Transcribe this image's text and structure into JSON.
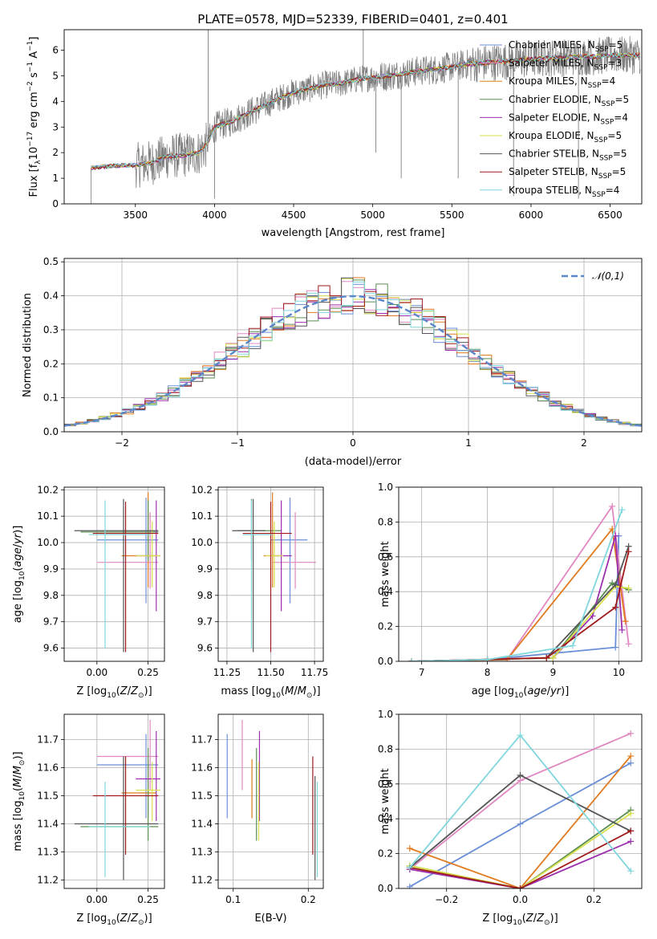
{
  "title": "PLATE=0578, MJD=52339, FIBERID=0401, z=0.401",
  "colors": {
    "series": [
      "#6a8fd8",
      "#e187c1",
      "#e07a1f",
      "#5b8f52",
      "#9b2fae",
      "#d8e04a",
      "#555555",
      "#a01a1a",
      "#7fd6dc"
    ],
    "data": "#7f7f7f",
    "grid": "#b0b0b0",
    "gauss": "#5b86c9"
  },
  "chart_data": [
    {
      "id": "spectrum",
      "type": "line",
      "xlabel": "wavelength [Angstrom, rest frame]",
      "ylabel": "Flux [f_λ 10^-17 erg cm^-2 s^-1 A^-1]",
      "xlim": [
        3050,
        6700
      ],
      "ylim": [
        0,
        6.8
      ],
      "xticks": [
        3500,
        4000,
        4500,
        5000,
        5500,
        6000,
        6500
      ],
      "yticks": [
        0,
        1,
        2,
        3,
        4,
        5,
        6
      ],
      "grid": false,
      "legend_position": "top-right",
      "series_names": [
        "Chabrier MILES, N_SSP=5",
        "Salpeter MILES, N_SSP=3",
        "Kroupa MILES, N_SSP=4",
        "Chabrier ELODIE, N_SSP=5",
        "Salpeter ELODIE, N_SSP=4",
        "Kroupa ELODIE, N_SSP=5",
        "Chabrier STELIB, N_SSP=5",
        "Salpeter STELIB, N_SSP=5",
        "Kroupa STELIB, N_SSP=4"
      ],
      "continuum": {
        "x": [
          3220,
          3300,
          3400,
          3500,
          3600,
          3700,
          3800,
          3900,
          3950,
          4000,
          4100,
          4200,
          4300,
          4400,
          4500,
          4600,
          4700,
          4800,
          4900,
          5000,
          5100,
          5200,
          5300,
          5400,
          5500,
          5600,
          5700,
          5800,
          5900,
          6000,
          6100,
          6200,
          6300,
          6400,
          6500
        ],
        "y": [
          1.4,
          1.45,
          1.5,
          1.5,
          1.6,
          1.85,
          1.9,
          2.0,
          2.3,
          3.0,
          3.2,
          3.5,
          3.8,
          4.1,
          4.35,
          4.5,
          4.65,
          4.7,
          4.85,
          4.95,
          5.0,
          5.1,
          5.2,
          5.25,
          5.35,
          5.45,
          5.5,
          5.55,
          5.6,
          5.65,
          5.7,
          5.7,
          5.75,
          5.75,
          5.8
        ]
      }
    },
    {
      "id": "residuals",
      "type": "step",
      "xlabel": "(data-model)/error",
      "ylabel": "Normed distribution",
      "xlim": [
        -2.5,
        2.5
      ],
      "ylim": [
        0,
        0.51
      ],
      "xticks": [
        -2,
        -1,
        0,
        1,
        2
      ],
      "yticks": [
        0.0,
        0.1,
        0.2,
        0.3,
        0.4,
        0.5
      ],
      "grid": true,
      "legend_position": "top-right",
      "legend": "𝒩(0,1)"
    },
    {
      "id": "age-vs-Z",
      "type": "scatter",
      "xlabel": "Z [log10(Z/Z⊙)]",
      "ylabel": "age  [log10(age/yr)]",
      "xlim": [
        -0.16,
        0.33
      ],
      "ylim": [
        9.55,
        10.21
      ],
      "xticks": [
        0.0,
        0.25
      ],
      "yticks": [
        9.6,
        9.7,
        9.8,
        9.9,
        10.0,
        10.1,
        10.2
      ],
      "points": [
        {
          "x": 0.24,
          "y": 10.01,
          "xerr": [
            0.24,
            0.06
          ],
          "yerr": [
            0.24,
            0.16
          ]
        },
        {
          "x": 0.26,
          "y": 9.925,
          "xerr": [
            0.26,
            0.04
          ],
          "yerr": [
            0.1,
            0.19
          ]
        },
        {
          "x": 0.25,
          "y": 9.95,
          "xerr": [
            0.13,
            0.04
          ],
          "yerr": [
            0.12,
            0.24
          ]
        },
        {
          "x": 0.25,
          "y": 10.04,
          "xerr": [
            0.33,
            0.05
          ],
          "yerr": [
            0.11,
            0.12
          ]
        },
        {
          "x": 0.29,
          "y": 9.95,
          "xerr": [
            0.1,
            0.02
          ],
          "yerr": [
            0.21,
            0.21
          ]
        },
        {
          "x": 0.27,
          "y": 9.95,
          "xerr": [
            0.08,
            0.04
          ],
          "yerr": [
            0.12,
            0.13
          ]
        },
        {
          "x": 0.13,
          "y": 10.045,
          "xerr": [
            0.24,
            0.17
          ],
          "yerr": [
            0.46,
            0.12
          ]
        },
        {
          "x": 0.14,
          "y": 10.035,
          "xerr": [
            0.16,
            0.16
          ],
          "yerr": [
            0.45,
            0.12
          ]
        },
        {
          "x": 0.04,
          "y": 10.03,
          "xerr": [
            0.08,
            0.22
          ],
          "yerr": [
            0.43,
            0.13
          ]
        }
      ]
    },
    {
      "id": "age-vs-mass",
      "type": "scatter",
      "xlabel": "mass [log10(M/M⊙)]",
      "ylabel": "",
      "xlim": [
        11.2,
        11.8
      ],
      "ylim": [
        9.55,
        10.21
      ],
      "xticks": [
        11.25,
        11.5,
        11.75
      ],
      "yticks": [
        9.6,
        9.7,
        9.8,
        9.9,
        10.0,
        10.1,
        10.2
      ],
      "points": [
        {
          "x": 11.61,
          "y": 10.01,
          "xerr": [
            0.11,
            0.1
          ],
          "yerr": [
            0.24,
            0.16
          ]
        },
        {
          "x": 11.64,
          "y": 9.925,
          "xerr": [
            0.13,
            0.12
          ],
          "yerr": [
            0.1,
            0.19
          ]
        },
        {
          "x": 11.51,
          "y": 9.95,
          "xerr": [
            0.05,
            0.05
          ],
          "yerr": [
            0.12,
            0.24
          ]
        },
        {
          "x": 11.39,
          "y": 10.045,
          "xerr": [
            0.08,
            0.17
          ],
          "yerr": [
            0.11,
            0.12
          ]
        },
        {
          "x": 11.56,
          "y": 9.95,
          "xerr": [
            0.05,
            0.06
          ],
          "yerr": [
            0.21,
            0.21
          ]
        },
        {
          "x": 11.52,
          "y": 9.95,
          "xerr": [
            0.05,
            0.05
          ],
          "yerr": [
            0.12,
            0.13
          ]
        },
        {
          "x": 11.4,
          "y": 10.045,
          "xerr": [
            0.12,
            0.07
          ],
          "yerr": [
            0.46,
            0.12
          ]
        },
        {
          "x": 11.5,
          "y": 10.035,
          "xerr": [
            0.16,
            0.12
          ],
          "yerr": [
            0.45,
            0.12
          ]
        },
        {
          "x": 11.39,
          "y": 10.03,
          "xerr": [
            0.05,
            0.12
          ],
          "yerr": [
            0.43,
            0.13
          ]
        }
      ]
    },
    {
      "id": "weight-vs-age",
      "type": "line",
      "xlabel": "age  [log10(age/yr)]",
      "ylabel": "mass weight",
      "xlim": [
        6.65,
        10.35
      ],
      "ylim": [
        0,
        1.0
      ],
      "xticks": [
        7,
        8,
        9,
        10
      ],
      "yticks": [
        0.0,
        0.2,
        0.4,
        0.6,
        0.8,
        1.0
      ],
      "grid": true,
      "series": [
        {
          "x": [
            6.85,
            8.0,
            9.95,
            10.0
          ],
          "y": [
            0.0,
            0.01,
            0.08,
            0.72
          ]
        },
        {
          "x": [
            6.85,
            8.3,
            9.9,
            10.15
          ],
          "y": [
            0.0,
            0.01,
            0.89,
            0.1
          ]
        },
        {
          "x": [
            6.85,
            8.3,
            9.9,
            10.1
          ],
          "y": [
            0.0,
            0.01,
            0.76,
            0.23
          ]
        },
        {
          "x": [
            6.85,
            9.0,
            9.9,
            10.15
          ],
          "y": [
            0.0,
            0.02,
            0.45,
            0.41
          ]
        },
        {
          "x": [
            6.85,
            9.0,
            9.6,
            9.95,
            10.05
          ],
          "y": [
            0.0,
            0.02,
            0.26,
            0.72,
            0.18
          ]
        },
        {
          "x": [
            6.85,
            9.0,
            9.95,
            10.15
          ],
          "y": [
            0.0,
            0.02,
            0.43,
            0.42
          ]
        },
        {
          "x": [
            6.85,
            8.0,
            8.9,
            9.95,
            10.15
          ],
          "y": [
            0.0,
            0.01,
            0.02,
            0.44,
            0.66
          ]
        },
        {
          "x": [
            6.85,
            8.9,
            9.95,
            10.15
          ],
          "y": [
            0.0,
            0.02,
            0.31,
            0.63
          ]
        },
        {
          "x": [
            6.85,
            8.0,
            9.3,
            10.05
          ],
          "y": [
            0.0,
            0.01,
            0.09,
            0.87
          ]
        }
      ]
    },
    {
      "id": "mass-vs-Z",
      "type": "scatter",
      "xlabel": "Z [log10(Z/Z⊙)]",
      "ylabel": "mass [log10(M/M⊙)]",
      "xlim": [
        -0.16,
        0.33
      ],
      "ylim": [
        11.17,
        11.79
      ],
      "xticks": [
        0.0,
        0.25
      ],
      "yticks": [
        11.2,
        11.3,
        11.4,
        11.5,
        11.6,
        11.7
      ],
      "points": [
        {
          "x": 0.24,
          "y": 11.61,
          "xerr": [
            0.24,
            0.06
          ],
          "yerr": [
            0.19,
            0.11
          ]
        },
        {
          "x": 0.26,
          "y": 11.64,
          "xerr": [
            0.26,
            0.04
          ],
          "yerr": [
            0.12,
            0.13
          ]
        },
        {
          "x": 0.25,
          "y": 11.51,
          "xerr": [
            0.13,
            0.04
          ],
          "yerr": [
            0.09,
            0.12
          ]
        },
        {
          "x": 0.25,
          "y": 11.39,
          "xerr": [
            0.33,
            0.05
          ],
          "yerr": [
            0.05,
            0.28
          ]
        },
        {
          "x": 0.29,
          "y": 11.56,
          "xerr": [
            0.1,
            0.02
          ],
          "yerr": [
            0.15,
            0.17
          ]
        },
        {
          "x": 0.27,
          "y": 11.52,
          "xerr": [
            0.08,
            0.04
          ],
          "yerr": [
            0.11,
            0.1
          ]
        },
        {
          "x": 0.13,
          "y": 11.4,
          "xerr": [
            0.24,
            0.17
          ],
          "yerr": [
            0.2,
            0.24
          ]
        },
        {
          "x": 0.14,
          "y": 11.5,
          "xerr": [
            0.16,
            0.16
          ],
          "yerr": [
            0.21,
            0.14
          ]
        },
        {
          "x": 0.04,
          "y": 11.39,
          "xerr": [
            0.08,
            0.22
          ],
          "yerr": [
            0.18,
            0.16
          ]
        }
      ]
    },
    {
      "id": "mass-vs-EBV",
      "type": "scatter",
      "xlabel": "E(B-V)",
      "ylabel": "",
      "xlim": [
        0.08,
        0.22
      ],
      "ylim": [
        11.17,
        11.79
      ],
      "xticks": [
        0.1,
        0.2
      ],
      "yticks": [
        11.2,
        11.3,
        11.4,
        11.5,
        11.6,
        11.7
      ],
      "points": [
        {
          "x": 0.092,
          "y": 11.61,
          "xerr": [
            0,
            0
          ],
          "yerr": [
            0.19,
            0.11
          ]
        },
        {
          "x": 0.112,
          "y": 11.64,
          "xerr": [
            0,
            0
          ],
          "yerr": [
            0.12,
            0.13
          ]
        },
        {
          "x": 0.125,
          "y": 11.51,
          "xerr": [
            0,
            0
          ],
          "yerr": [
            0.09,
            0.12
          ]
        },
        {
          "x": 0.131,
          "y": 11.39,
          "xerr": [
            0,
            0
          ],
          "yerr": [
            0.05,
            0.28
          ]
        },
        {
          "x": 0.135,
          "y": 11.56,
          "xerr": [
            0,
            0
          ],
          "yerr": [
            0.15,
            0.17
          ]
        },
        {
          "x": 0.134,
          "y": 11.52,
          "xerr": [
            0,
            0
          ],
          "yerr": [
            0.18,
            0.1
          ]
        },
        {
          "x": 0.209,
          "y": 11.4,
          "xerr": [
            0,
            0
          ],
          "yerr": [
            0.2,
            0.17
          ]
        },
        {
          "x": 0.206,
          "y": 11.5,
          "xerr": [
            0,
            0
          ],
          "yerr": [
            0.21,
            0.14
          ]
        },
        {
          "x": 0.212,
          "y": 11.39,
          "xerr": [
            0,
            0
          ],
          "yerr": [
            0.18,
            0.16
          ]
        }
      ]
    },
    {
      "id": "weight-vs-Z",
      "type": "line",
      "xlabel": "Z [log10(Z/Z⊙)]",
      "ylabel": "mass weight",
      "xlim": [
        -0.33,
        0.33
      ],
      "ylim": [
        0,
        1.0
      ],
      "xticks": [
        -0.2,
        0.0,
        0.2
      ],
      "yticks": [
        0.0,
        0.2,
        0.4,
        0.6,
        0.8,
        1.0
      ],
      "grid": true,
      "series": [
        {
          "x": [
            -0.3,
            0.0,
            0.3
          ],
          "y": [
            0.01,
            0.37,
            0.72
          ]
        },
        {
          "x": [
            -0.3,
            0.0,
            0.3
          ],
          "y": [
            0.11,
            0.62,
            0.89
          ]
        },
        {
          "x": [
            -0.3,
            0.0,
            0.3
          ],
          "y": [
            0.23,
            0.0,
            0.76
          ]
        },
        {
          "x": [
            -0.3,
            0.0,
            0.3
          ],
          "y": [
            0.13,
            0.0,
            0.45
          ]
        },
        {
          "x": [
            -0.3,
            0.0,
            0.3
          ],
          "y": [
            0.11,
            0.0,
            0.27
          ]
        },
        {
          "x": [
            -0.3,
            0.0,
            0.3
          ],
          "y": [
            0.13,
            0.0,
            0.43
          ]
        },
        {
          "x": [
            -0.3,
            0.0,
            0.3
          ],
          "y": [
            0.12,
            0.65,
            0.33
          ]
        },
        {
          "x": [
            -0.3,
            0.0,
            0.3
          ],
          "y": [
            0.12,
            0.0,
            0.33
          ]
        },
        {
          "x": [
            -0.3,
            0.0,
            0.3
          ],
          "y": [
            0.12,
            0.88,
            0.1
          ]
        }
      ]
    }
  ]
}
